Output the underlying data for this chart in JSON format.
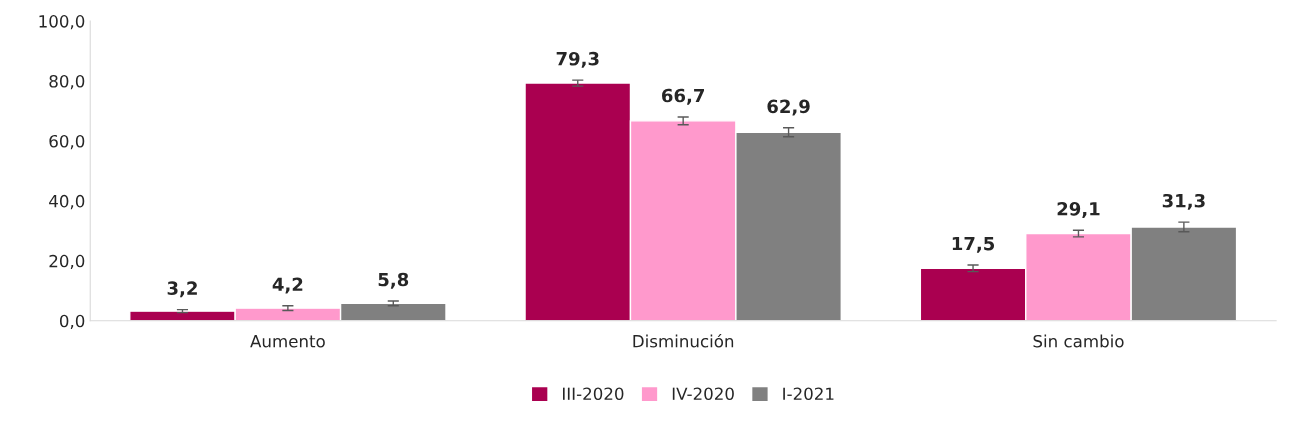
{
  "chart_data": {
    "type": "bar",
    "categories": [
      "Aumento",
      "Disminución",
      "Sin cambio"
    ],
    "series": [
      {
        "name": "III-2020",
        "color": "#aa0050",
        "values": [
          3.2,
          79.3,
          17.5
        ],
        "errors": [
          0.5,
          1.0,
          1.1
        ],
        "value_labels": [
          "3,2",
          "79,3",
          "17,5"
        ]
      },
      {
        "name": "IV-2020",
        "color": "#ff99cc",
        "values": [
          4.2,
          66.7,
          29.1
        ],
        "errors": [
          0.8,
          1.3,
          1.1
        ],
        "value_labels": [
          "4,2",
          "66,7",
          "29,1"
        ]
      },
      {
        "name": "I-2021",
        "color": "#808080",
        "values": [
          5.8,
          62.9,
          31.3
        ],
        "errors": [
          0.8,
          1.5,
          1.6
        ],
        "value_labels": [
          "5,8",
          "62,9",
          "31,3"
        ]
      }
    ],
    "ylim": [
      0,
      100
    ],
    "yticks": [
      {
        "value": 0,
        "label": "0,0"
      },
      {
        "value": 20,
        "label": "20,0"
      },
      {
        "value": 40,
        "label": "40,0"
      },
      {
        "value": 60,
        "label": "60,0"
      },
      {
        "value": 80,
        "label": "80,0"
      },
      {
        "value": 100,
        "label": "100,0"
      }
    ],
    "grid": false,
    "legend": "bottom"
  }
}
